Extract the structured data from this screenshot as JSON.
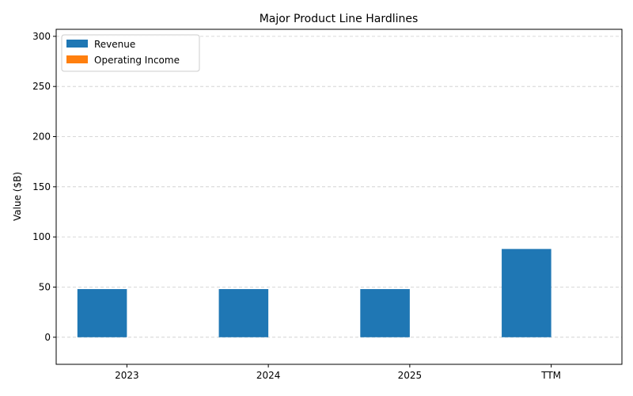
{
  "chart_data": {
    "type": "bar",
    "title": "Major Product Line Hardlines",
    "xlabel": "",
    "ylabel": "Value ($B)",
    "categories": [
      "2023",
      "2024",
      "2025",
      "TTM"
    ],
    "series": [
      {
        "name": "Revenue",
        "values": [
          48,
          48,
          48,
          88
        ],
        "color": "#1f77b4"
      },
      {
        "name": "Operating Income",
        "values": [
          0,
          0,
          0,
          0
        ],
        "color": "#ff7f0e"
      }
    ],
    "ylim": [
      -27,
      307
    ],
    "yticks": [
      0,
      50,
      100,
      150,
      200,
      250,
      300
    ],
    "grid": true,
    "legend": "top-left"
  }
}
